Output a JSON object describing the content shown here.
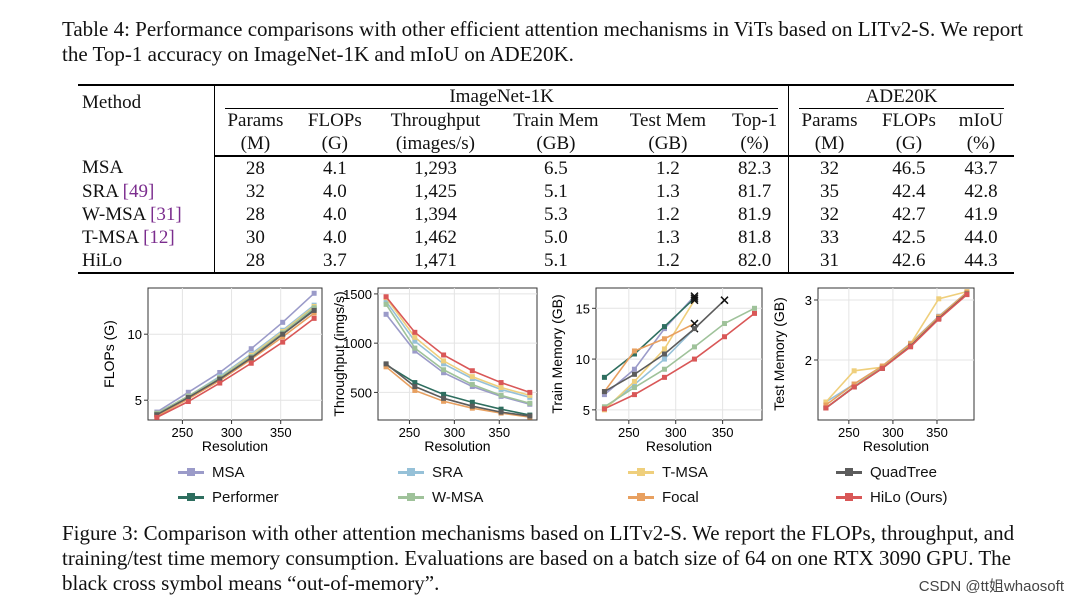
{
  "table_caption": "Table 4: Performance comparisons with other efficient attention mechanisms in ViTs based on LITv2-S. We report the Top-1 accuracy on ImageNet-1K and mIoU on ADE20K.",
  "table": {
    "method_header": "Method",
    "group_imagenet": "ImageNet-1K",
    "group_ade": "ADE20K",
    "col_names": [
      "Params",
      "FLOPs",
      "Throughput",
      "Train Mem",
      "Test Mem",
      "Top-1",
      "Params",
      "FLOPs",
      "mIoU"
    ],
    "col_units": [
      "(M)",
      "(G)",
      "(images/s)",
      "(GB)",
      "(GB)",
      "(%)",
      "(M)",
      "(G)",
      "(%)"
    ],
    "rows": [
      {
        "name": "MSA",
        "ref": "",
        "cells": [
          "28",
          "4.1",
          "1,293",
          "6.5",
          "1.2",
          "82.3",
          "32",
          "46.5",
          "43.7"
        ],
        "bold": []
      },
      {
        "name": "SRA",
        "ref": "[49]",
        "cells": [
          "32",
          "4.0",
          "1,425",
          "5.1",
          "1.3",
          "81.7",
          "35",
          "42.4",
          "42.8"
        ],
        "bold": [
          7
        ]
      },
      {
        "name": "W-MSA",
        "ref": "[31]",
        "cells": [
          "28",
          "4.0",
          "1,394",
          "5.3",
          "1.2",
          "81.9",
          "32",
          "42.7",
          "41.9"
        ],
        "bold": []
      },
      {
        "name": "T-MSA",
        "ref": "[12]",
        "cells": [
          "30",
          "4.0",
          "1,462",
          "5.0",
          "1.3",
          "81.8",
          "33",
          "42.5",
          "44.0"
        ],
        "bold": [
          3
        ]
      },
      {
        "name": "HiLo",
        "ref": "",
        "cells": [
          "28",
          "3.7",
          "1,471",
          "5.1",
          "1.2",
          "82.0",
          "31",
          "42.6",
          "44.3"
        ],
        "bold": [
          0,
          1,
          2,
          4,
          5,
          6,
          8
        ]
      }
    ]
  },
  "chart_data": [
    {
      "type": "line",
      "ylabel": "FLOPs (G)",
      "xlabel": "Resolution",
      "xlim": [
        215,
        392
      ],
      "ylim": [
        3.5,
        13.5
      ],
      "xticks": [
        250,
        300,
        350
      ],
      "yticks": [
        5,
        10
      ],
      "x": [
        224,
        256,
        288,
        320,
        352,
        384
      ],
      "series": [
        {
          "name": "MSA",
          "values": [
            4.1,
            5.6,
            7.1,
            8.9,
            10.9,
            13.1
          ]
        },
        {
          "name": "SRA",
          "values": [
            4.0,
            5.3,
            6.8,
            8.5,
            10.3,
            12.2
          ]
        },
        {
          "name": "T-MSA",
          "values": [
            4.0,
            5.3,
            6.7,
            8.4,
            10.2,
            12.1
          ]
        },
        {
          "name": "Performer",
          "values": [
            3.9,
            5.2,
            6.6,
            8.2,
            10.0,
            11.9
          ]
        },
        {
          "name": "W-MSA",
          "values": [
            4.0,
            5.3,
            6.7,
            8.3,
            10.1,
            12.0
          ]
        },
        {
          "name": "Focal",
          "values": [
            3.8,
            5.1,
            6.5,
            8.1,
            9.8,
            11.6
          ]
        },
        {
          "name": "QuadTree",
          "values": [
            3.9,
            5.2,
            6.6,
            8.2,
            10.0,
            11.8
          ]
        },
        {
          "name": "HiLo (Ours)",
          "values": [
            3.7,
            4.9,
            6.3,
            7.8,
            9.4,
            11.2
          ]
        }
      ]
    },
    {
      "type": "line",
      "ylabel": "Throughput (imgs/s)",
      "xlabel": "Resolution",
      "xlim": [
        215,
        392
      ],
      "ylim": [
        220,
        1560
      ],
      "xticks": [
        250,
        300,
        350
      ],
      "yticks": [
        500,
        1000,
        1500
      ],
      "x": [
        224,
        256,
        288,
        320,
        352,
        384
      ],
      "series": [
        {
          "name": "MSA",
          "values": [
            1293,
            920,
            700,
            560,
            460,
            380
          ]
        },
        {
          "name": "SRA",
          "values": [
            1425,
            1020,
            790,
            640,
            530,
            450
          ]
        },
        {
          "name": "T-MSA",
          "values": [
            1462,
            1060,
            820,
            660,
            550,
            470
          ]
        },
        {
          "name": "Performer",
          "values": [
            780,
            600,
            480,
            400,
            330,
            270
          ]
        },
        {
          "name": "W-MSA",
          "values": [
            1394,
            950,
            730,
            580,
            470,
            390
          ]
        },
        {
          "name": "Focal",
          "values": [
            760,
            520,
            410,
            340,
            290,
            250
          ]
        },
        {
          "name": "QuadTree",
          "values": [
            790,
            560,
            440,
            360,
            300,
            260
          ]
        },
        {
          "name": "HiLo (Ours)",
          "values": [
            1471,
            1110,
            880,
            720,
            600,
            500
          ]
        }
      ]
    },
    {
      "type": "line",
      "ylabel": "Train Memory (GB)",
      "xlabel": "Resolution",
      "xlim": [
        215,
        392
      ],
      "ylim": [
        4,
        17
      ],
      "xticks": [
        250,
        300,
        350
      ],
      "yticks": [
        5,
        10,
        15
      ],
      "x": [
        224,
        256,
        288,
        320,
        352,
        384
      ],
      "annotation": "black cross = out-of-memory",
      "series": [
        {
          "name": "MSA",
          "values": [
            6.5,
            9.0,
            13.0,
            16.2,
            null,
            null
          ],
          "oom": 320
        },
        {
          "name": "SRA",
          "values": [
            5.1,
            7.5,
            10.0,
            13.0,
            null,
            null
          ],
          "oom": 320
        },
        {
          "name": "T-MSA",
          "values": [
            5.0,
            7.8,
            11.0,
            15.8,
            null,
            null
          ],
          "oom": 320
        },
        {
          "name": "Performer",
          "values": [
            8.2,
            10.5,
            13.2,
            16.0,
            null,
            null
          ],
          "oom": 320
        },
        {
          "name": "W-MSA",
          "values": [
            5.3,
            7.2,
            9.0,
            11.2,
            13.5,
            15.0
          ]
        },
        {
          "name": "Focal",
          "values": [
            6.8,
            10.8,
            12.0,
            13.5,
            null,
            null
          ],
          "oom": 320
        },
        {
          "name": "QuadTree",
          "values": [
            6.8,
            8.5,
            10.5,
            13.0,
            15.8,
            null
          ],
          "oom": 352
        },
        {
          "name": "HiLo (Ours)",
          "values": [
            5.1,
            6.5,
            8.2,
            10.0,
            12.2,
            14.5
          ]
        }
      ]
    },
    {
      "type": "line",
      "ylabel": "Test Memory (GB)",
      "xlabel": "Resolution",
      "xlim": [
        215,
        392
      ],
      "ylim": [
        1.0,
        3.2
      ],
      "xticks": [
        250,
        300,
        350
      ],
      "yticks": [
        2,
        3
      ],
      "x": [
        224,
        256,
        288,
        320,
        352,
        384
      ],
      "series": [
        {
          "name": "MSA",
          "values": [
            1.2,
            1.55,
            1.88,
            2.25,
            2.72,
            3.12
          ]
        },
        {
          "name": "SRA",
          "values": [
            1.3,
            1.6,
            1.9,
            2.28,
            2.73,
            3.13
          ]
        },
        {
          "name": "T-MSA",
          "values": [
            1.3,
            1.82,
            1.88,
            2.27,
            3.02,
            3.14
          ]
        },
        {
          "name": "Performer",
          "values": [
            1.2,
            1.55,
            1.87,
            2.24,
            2.7,
            3.1
          ]
        },
        {
          "name": "W-MSA",
          "values": [
            1.2,
            1.56,
            1.88,
            2.25,
            2.71,
            3.11
          ]
        },
        {
          "name": "Focal",
          "values": [
            1.25,
            1.6,
            1.9,
            2.27,
            2.72,
            3.13
          ]
        },
        {
          "name": "QuadTree",
          "values": [
            1.2,
            1.55,
            1.86,
            2.23,
            2.69,
            3.1
          ]
        },
        {
          "name": "HiLo (Ours)",
          "values": [
            1.2,
            1.55,
            1.86,
            2.22,
            2.68,
            3.09
          ]
        }
      ]
    }
  ],
  "series_colors": {
    "MSA": "#9b9bc9",
    "Performer": "#2e6e5f",
    "SRA": "#96c1d8",
    "W-MSA": "#9fc29a",
    "T-MSA": "#efcf7c",
    "Focal": "#e8a060",
    "QuadTree": "#5c5c5c",
    "HiLo (Ours)": "#d95757"
  },
  "legend": [
    {
      "name": "MSA"
    },
    {
      "name": "Performer"
    },
    {
      "name": "SRA"
    },
    {
      "name": "W-MSA"
    },
    {
      "name": "T-MSA"
    },
    {
      "name": "Focal"
    },
    {
      "name": "QuadTree"
    },
    {
      "name": "HiLo (Ours)"
    }
  ],
  "figure_caption": "Figure 3: Comparison with other attention mechanisms based on LITv2-S. We report the FLOPs, throughput, and training/test time memory consumption. Evaluations are based on a batch size of 64 on one RTX 3090 GPU. The black cross symbol means “out-of-memory”.",
  "watermark": "CSDN @tt姐whaosoft"
}
